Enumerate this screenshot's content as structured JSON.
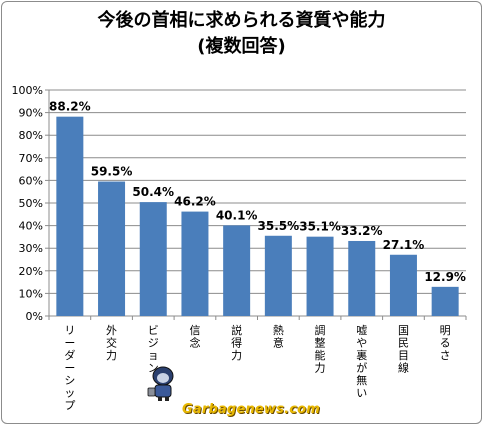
{
  "chart_data": {
    "type": "bar",
    "title": "今後の首相に求められる資質や能力",
    "subtitle": "(複数回答)",
    "categories": [
      "リーダーシップ",
      "外交力",
      "ビジョン",
      "信念",
      "説得力",
      "熱意",
      "調整能力",
      "嘘や裏が無い",
      "国民目線",
      "明るさ"
    ],
    "values": [
      88.2,
      59.5,
      50.4,
      46.2,
      40.1,
      35.5,
      35.1,
      33.2,
      27.1,
      12.9
    ],
    "data_labels": [
      "88.2%",
      "59.5%",
      "50.4%",
      "46.2%",
      "40.1%",
      "35.5%",
      "35.1%",
      "33.2%",
      "27.1%",
      "12.9%"
    ],
    "y_ticks": [
      "0%",
      "10%",
      "20%",
      "30%",
      "40%",
      "50%",
      "60%",
      "70%",
      "80%",
      "90%",
      "100%"
    ],
    "ylim": [
      0,
      100
    ],
    "grid": true,
    "legend": "none",
    "bar_color": "#4a7ebb"
  },
  "watermark": "Garbagenews.com"
}
